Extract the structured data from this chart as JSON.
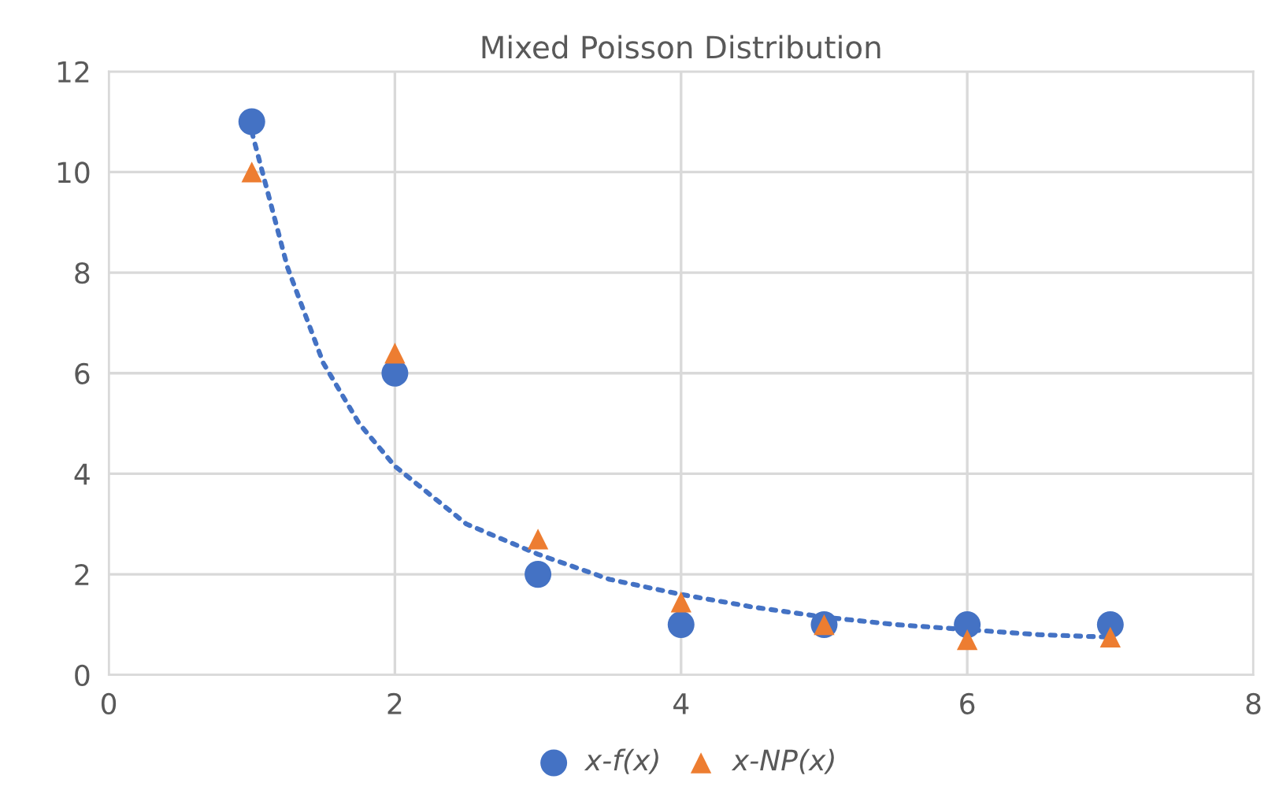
{
  "chart_data": {
    "type": "scatter",
    "title": "Mixed Poisson Distribution",
    "x": [
      1,
      2,
      3,
      4,
      5,
      6,
      7
    ],
    "series": [
      {
        "name": "x-f(x)",
        "color": "#4472c4",
        "marker": "circle",
        "values": [
          11,
          6,
          2,
          1,
          1,
          1,
          1
        ]
      },
      {
        "name": "x-NP(x)",
        "color": "#ed7d31",
        "marker": "triangle",
        "values": [
          10,
          6.4,
          2.7,
          1.45,
          1.0,
          0.7,
          0.75
        ]
      },
      {
        "type": "line",
        "color": "#4472c4",
        "line_style": "dotted",
        "marker": "none",
        "x": [
          1,
          1.25,
          1.5,
          1.75,
          2,
          2.5,
          3,
          3.5,
          4,
          4.5,
          5,
          5.5,
          6,
          6.5,
          7
        ],
        "values": [
          10.8,
          8.1,
          6.2,
          5.0,
          4.15,
          3.0,
          2.4,
          1.9,
          1.6,
          1.35,
          1.15,
          1.0,
          0.9,
          0.8,
          0.75
        ]
      }
    ],
    "xlim": [
      0,
      8
    ],
    "xticks": [
      0,
      2,
      4,
      6,
      8
    ],
    "ylim": [
      0,
      12
    ],
    "yticks": [
      0,
      2,
      4,
      6,
      8,
      10,
      12
    ],
    "grid": true,
    "legend": "bottom"
  }
}
